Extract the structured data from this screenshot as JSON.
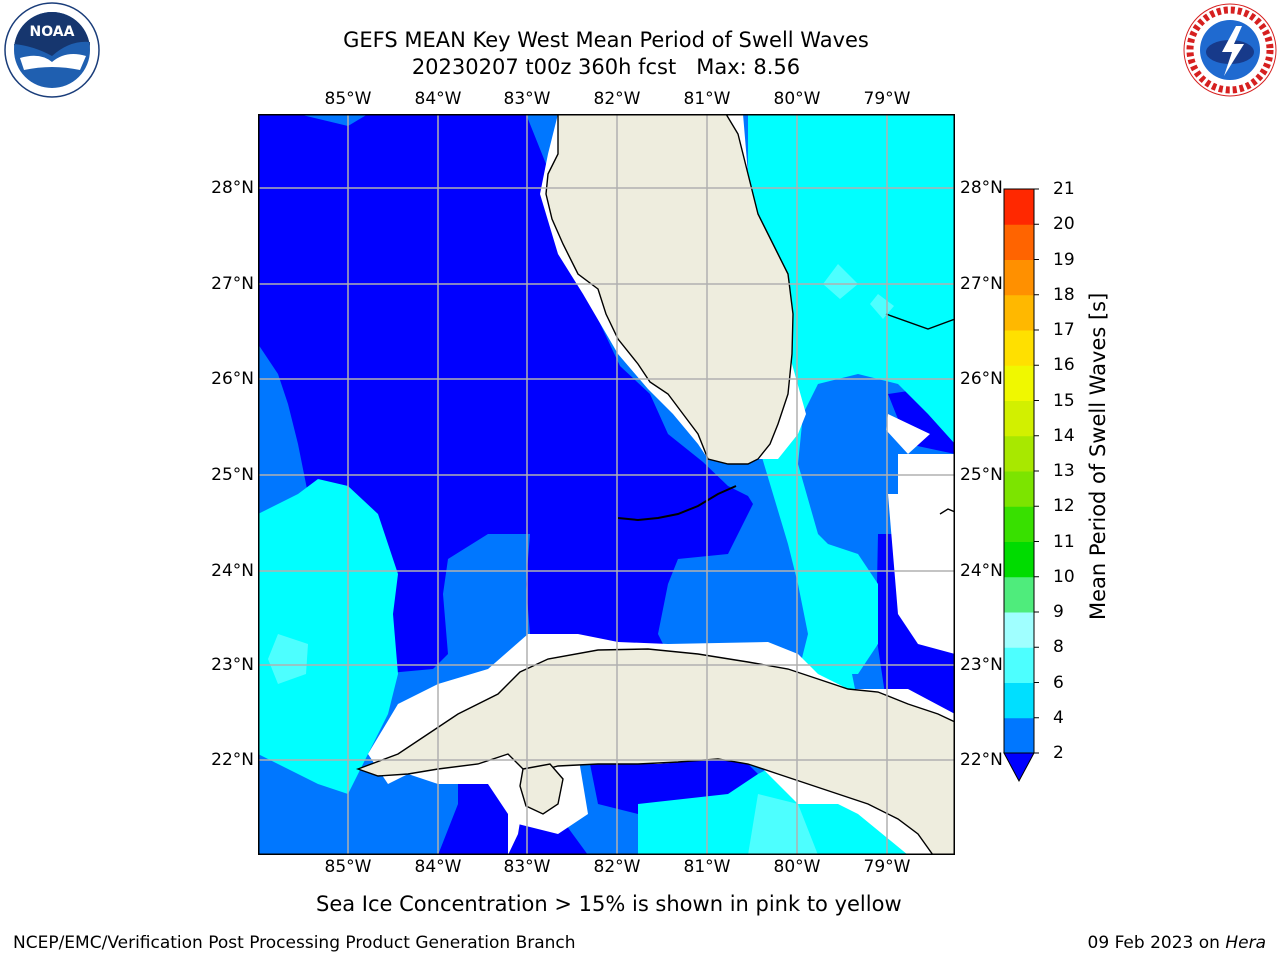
{
  "title": {
    "line1": "GEFS MEAN Key West Mean Period of Swell Waves",
    "line2": "20230207 t00z 360h fcst   Max: 8.56"
  },
  "map": {
    "lon_labels": [
      "85°W",
      "84°W",
      "83°W",
      "82°W",
      "81°W",
      "80°W",
      "79°W"
    ],
    "lat_labels": [
      "28°N",
      "27°N",
      "26°N",
      "25°N",
      "24°N",
      "23°N",
      "22°N"
    ],
    "land_color": "#eeedde",
    "grid_color": "#b0b0b0"
  },
  "colorbar": {
    "title": "Mean Period of Swell Waves [s]",
    "levels": [
      "2",
      "4",
      "6",
      "8",
      "9",
      "10",
      "11",
      "12",
      "13",
      "14",
      "15",
      "16",
      "17",
      "18",
      "19",
      "20",
      "21"
    ],
    "colors": [
      "#0077ff",
      "#00dfff",
      "#4dffff",
      "#a0ffff",
      "#4fec7c",
      "#00dc00",
      "#38e000",
      "#7ce400",
      "#a8e800",
      "#d2f000",
      "#f0f800",
      "#ffe000",
      "#ffb800",
      "#ff9000",
      "#ff6400",
      "#ff2800"
    ],
    "under_color": "#0000ff"
  },
  "footnote": "Sea Ice Concentration > 15% is shown in pink to yellow",
  "footer": {
    "left": "NCEP/EMC/Verification Post Processing Product Generation Branch",
    "right_date": "09 Feb 2023 on ",
    "right_host": "Hera"
  },
  "logos": {
    "noaa": "NOAA",
    "nws": "NATIONAL WEATHER SERVICE"
  }
}
